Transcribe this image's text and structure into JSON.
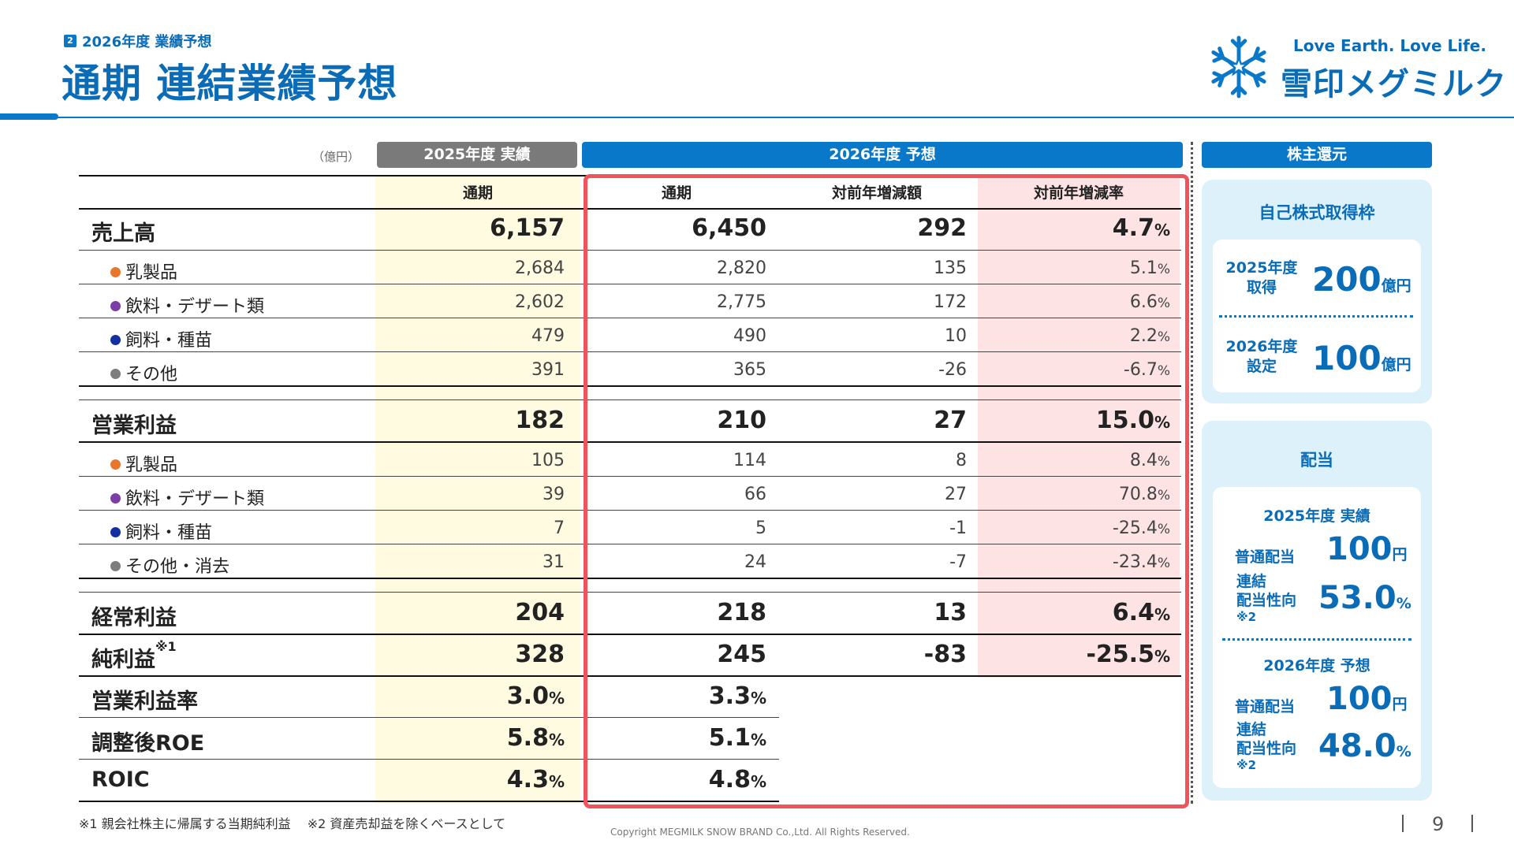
{
  "header": {
    "section_number": "2",
    "section_label": "2026年度 業績予想",
    "title": "通期 連結業績予想"
  },
  "logo": {
    "tagline": "Love Earth. Love Life.",
    "name": "雪印メグミルク"
  },
  "table": {
    "unit": "（億円）",
    "group_2025": "2025年度 実績",
    "group_2026": "2026年度 予想",
    "columns": [
      "通期",
      "通期",
      "対前年増減額",
      "対前年増減率"
    ],
    "rows": [
      {
        "label": "売上高",
        "level": "main",
        "v2025": "6,157",
        "v2026": "6,450",
        "diff": "292",
        "rate": "4.7",
        "rate_unit": "%"
      },
      {
        "label": "乳製品",
        "level": "sub",
        "dot": "#e8762c",
        "v2025": "2,684",
        "v2026": "2,820",
        "diff": "135",
        "rate": "5.1",
        "rate_unit": "%"
      },
      {
        "label": "飲料・デザート類",
        "level": "sub",
        "dot": "#7a3fa6",
        "v2025": "2,602",
        "v2026": "2,775",
        "diff": "172",
        "rate": "6.6",
        "rate_unit": "%"
      },
      {
        "label": "飼料・種苗",
        "level": "sub",
        "dot": "#1230a0",
        "v2025": "479",
        "v2026": "490",
        "diff": "10",
        "rate": "2.2",
        "rate_unit": "%"
      },
      {
        "label": "その他",
        "level": "sub",
        "dot": "#7d7d7d",
        "v2025": "391",
        "v2026": "365",
        "diff": "-26",
        "rate": "-6.7",
        "rate_unit": "%"
      },
      {
        "label": "営業利益",
        "level": "main",
        "v2025": "182",
        "v2026": "210",
        "diff": "27",
        "rate": "15.0",
        "rate_unit": "%"
      },
      {
        "label": "乳製品",
        "level": "sub",
        "dot": "#e8762c",
        "v2025": "105",
        "v2026": "114",
        "diff": "8",
        "rate": "8.4",
        "rate_unit": "%"
      },
      {
        "label": "飲料・デザート類",
        "level": "sub",
        "dot": "#7a3fa6",
        "v2025": "39",
        "v2026": "66",
        "diff": "27",
        "rate": "70.8",
        "rate_unit": "%"
      },
      {
        "label": "飼料・種苗",
        "level": "sub",
        "dot": "#1230a0",
        "v2025": "7",
        "v2026": "5",
        "diff": "-1",
        "rate": "-25.4",
        "rate_unit": "%"
      },
      {
        "label": "その他・消去",
        "level": "sub",
        "dot": "#7d7d7d",
        "v2025": "31",
        "v2026": "24",
        "diff": "-7",
        "rate": "-23.4",
        "rate_unit": "%"
      },
      {
        "label": "経常利益",
        "level": "main",
        "v2025": "204",
        "v2026": "218",
        "diff": "13",
        "rate": "6.4",
        "rate_unit": "%"
      },
      {
        "label": "純利益",
        "label_note": "※1",
        "level": "main",
        "v2025": "328",
        "v2026": "245",
        "diff": "-83",
        "rate": "-25.5",
        "rate_unit": "%"
      },
      {
        "label": "営業利益率",
        "level": "main",
        "v2025": "3.0",
        "v2025_unit": "%",
        "v2026": "3.3",
        "v2026_unit": "%"
      },
      {
        "label": "調整後ROE",
        "level": "main",
        "v2025": "5.8",
        "v2025_unit": "%",
        "v2026": "5.1",
        "v2026_unit": "%"
      },
      {
        "label": "ROIC",
        "level": "main",
        "v2025": "4.3",
        "v2025_unit": "%",
        "v2026": "4.8",
        "v2026_unit": "%"
      }
    ]
  },
  "shareholder": {
    "header": "株主還元",
    "buyback": {
      "title": "自己株式取得枠",
      "items": [
        {
          "label_line1": "2025年度",
          "label_line2": "取得",
          "value": "200",
          "unit": "億円"
        },
        {
          "label_line1": "2026年度",
          "label_line2": "設定",
          "value": "100",
          "unit": "億円"
        }
      ]
    },
    "dividend": {
      "title": "配当",
      "blocks": [
        {
          "title": "2025年度 実績",
          "dps_label": "普通配当",
          "dps_value": "100",
          "dps_unit": "円",
          "payout_line1": "連結",
          "payout_line2": "配当性向",
          "payout_note": "※2",
          "payout_value": "53.0",
          "payout_unit": "%"
        },
        {
          "title": "2026年度 予想",
          "dps_label": "普通配当",
          "dps_value": "100",
          "dps_unit": "円",
          "payout_line1": "連結",
          "payout_line2": "配当性向",
          "payout_note": "※2",
          "payout_value": "48.0",
          "payout_unit": "%"
        }
      ]
    }
  },
  "footnote": "※1 親会社株主に帰属する当期純利益　 ※2 資産売却益を除くベースとして",
  "copyright": "Copyright  MEGMILK SNOW BRAND Co.,Ltd. All Rights Reserved.",
  "page_number": "9"
}
